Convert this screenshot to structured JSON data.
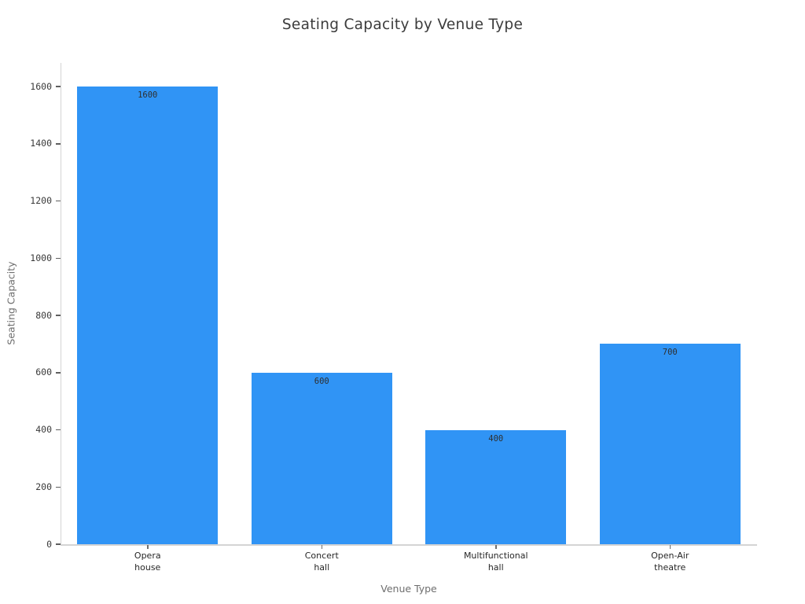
{
  "chart_data": {
    "type": "bar",
    "title": "Seating Capacity by Venue Type",
    "xlabel": "Venue Type",
    "ylabel": "Seating Capacity",
    "categories": [
      "Opera\nhouse",
      "Concert\nhall",
      "Multifunctional\nhall",
      "Open-Air\ntheatre"
    ],
    "values": [
      1600,
      600,
      400,
      700
    ],
    "bar_labels": [
      "1600",
      "600",
      "400",
      "700"
    ],
    "yticks": [
      0,
      200,
      400,
      600,
      800,
      1000,
      1200,
      1400,
      1600
    ],
    "ylim": [
      0,
      1682
    ],
    "grid": false,
    "legend": false,
    "colors": {
      "bar_fill": "#3094f5",
      "title_text": "#3c3c3c",
      "axis_title_text": "#6e6e6e",
      "tick_label_text": "#3a3a3a",
      "bar_label_text": "#2f2f2f",
      "spine": "#d4d4d4",
      "background": "#ffffff"
    }
  }
}
